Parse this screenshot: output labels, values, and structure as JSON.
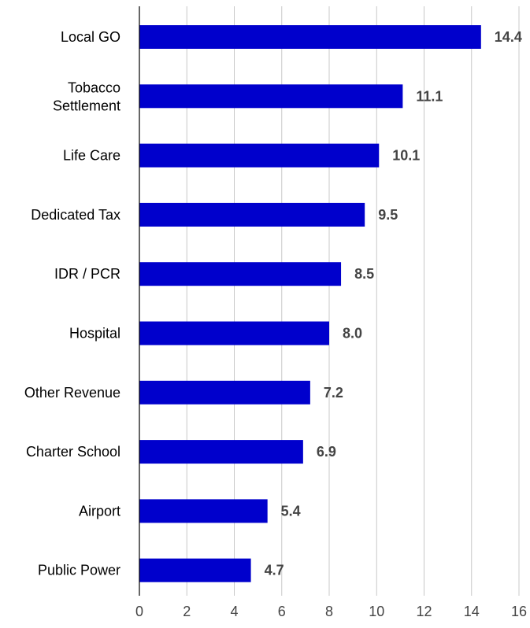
{
  "chart_data": {
    "type": "bar",
    "orientation": "horizontal",
    "categories": [
      "Local GO",
      "Tobacco Settlement",
      "Life Care",
      "Dedicated Tax",
      "IDR / PCR",
      "Hospital",
      "Other Revenue",
      "Charter School",
      "Airport",
      "Public Power"
    ],
    "values": [
      14.4,
      11.1,
      10.1,
      9.5,
      8.5,
      8.0,
      7.2,
      6.9,
      5.4,
      4.7
    ],
    "value_labels": [
      "14.4",
      "11.1",
      "10.1",
      "9.5",
      "8.5",
      "8.0",
      "7.2",
      "6.9",
      "5.4",
      "4.7"
    ],
    "xlim": [
      0,
      16
    ],
    "x_ticks": [
      0,
      2,
      4,
      6,
      8,
      10,
      12,
      14,
      16
    ],
    "grid": "vertical",
    "bar_color": "#0000CC",
    "grid_color": "#C8C8C8",
    "axis_color": "#000000",
    "label_color": "#000000",
    "value_label_color": "#444444"
  }
}
